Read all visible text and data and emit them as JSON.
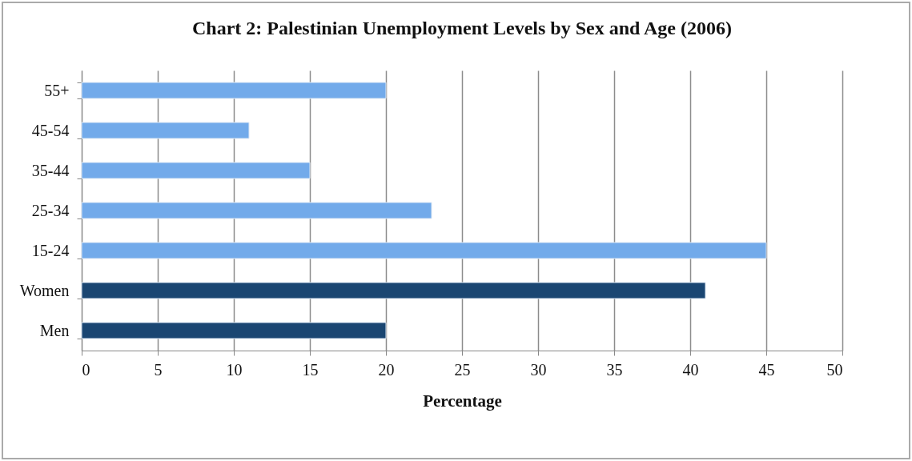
{
  "chart_data": {
    "type": "bar",
    "orientation": "horizontal",
    "title": "Chart 2: Palestinian Unemployment Levels by Sex and Age (2006)",
    "xlabel": "Percentage",
    "categories": [
      "55+",
      "45-54",
      "35-44",
      "25-34",
      "15-24",
      "Women",
      "Men"
    ],
    "values": [
      20,
      11,
      15,
      23,
      45,
      41,
      20
    ],
    "colors": [
      "#72aaea",
      "#72aaea",
      "#72aaea",
      "#72aaea",
      "#72aaea",
      "#1a4672",
      "#1a4672"
    ],
    "xlim": [
      0,
      50
    ],
    "xticks": [
      0,
      5,
      10,
      15,
      20,
      25,
      30,
      35,
      40,
      45,
      50
    ],
    "grid": "x"
  }
}
